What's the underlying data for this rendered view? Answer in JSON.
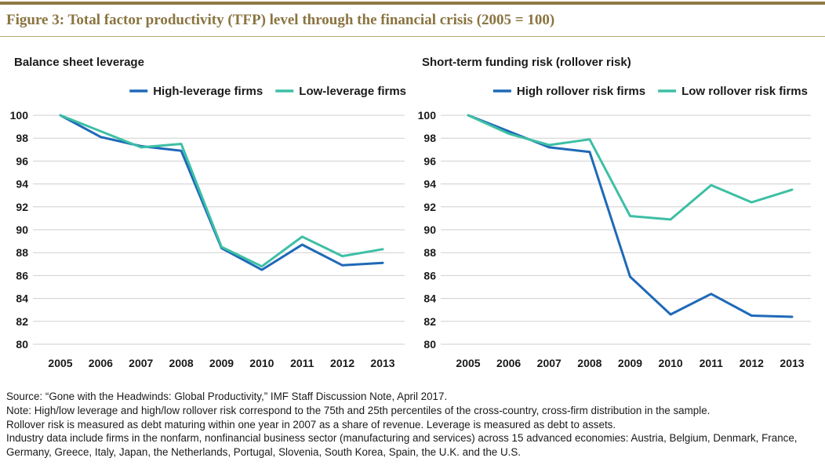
{
  "figure_title": "Figure 3: Total factor productivity (TFP) level through the financial crisis (2005 = 100)",
  "colors": {
    "series_dark": "#1f69b8",
    "series_light": "#3dbfa5",
    "grid": "#cfcfcf",
    "accent": "#8f7a45"
  },
  "chart_data": [
    {
      "type": "line",
      "title": "Balance sheet leverage",
      "xlabel": "",
      "ylabel": "",
      "categories": [
        "2005",
        "2006",
        "2007",
        "2008",
        "2009",
        "2010",
        "2011",
        "2012",
        "2013"
      ],
      "ylim": [
        80,
        100
      ],
      "yticks": [
        "100",
        "98",
        "96",
        "94",
        "92",
        "90",
        "88",
        "86",
        "84",
        "82",
        "80"
      ],
      "grid": true,
      "legend_position": "top-right",
      "series": [
        {
          "name": "High-leverage firms",
          "color": "#1f69b8",
          "values": [
            100,
            98.1,
            97.3,
            96.9,
            88.4,
            86.5,
            88.7,
            86.9,
            87.1
          ]
        },
        {
          "name": "Low-leverage firms",
          "color": "#3dbfa5",
          "values": [
            100,
            98.6,
            97.2,
            97.5,
            88.5,
            86.8,
            89.4,
            87.7,
            88.3
          ]
        }
      ]
    },
    {
      "type": "line",
      "title": "Short-term funding risk (rollover risk)",
      "xlabel": "",
      "ylabel": "",
      "categories": [
        "2005",
        "2006",
        "2007",
        "2008",
        "2009",
        "2010",
        "2011",
        "2012",
        "2013"
      ],
      "ylim": [
        80,
        100
      ],
      "yticks": [
        "100",
        "98",
        "96",
        "94",
        "92",
        "90",
        "88",
        "86",
        "84",
        "82",
        "80"
      ],
      "grid": true,
      "legend_position": "top-right",
      "series": [
        {
          "name": "High rollover risk firms",
          "color": "#1f69b8",
          "values": [
            100,
            98.6,
            97.2,
            96.8,
            85.9,
            82.6,
            84.4,
            82.5,
            82.4
          ]
        },
        {
          "name": "Low rollover risk firms",
          "color": "#3dbfa5",
          "values": [
            100,
            98.4,
            97.4,
            97.9,
            91.2,
            90.9,
            93.9,
            92.4,
            93.5
          ]
        }
      ]
    }
  ],
  "notes": {
    "source": "Source: “Gone with the Headwinds: Global Productivity,” IMF Staff Discussion Note, April 2017.",
    "note": "Note: High/low leverage and high/low rollover risk correspond to the 75th and 25th percentiles of the cross-country, cross-firm distribution in the sample.",
    "rollover": "Rollover risk is measured as debt maturing within one year in 2007 as a share of revenue. Leverage is measured as debt to assets.",
    "industry": "Industry data include firms in the nonfarm, nonfinancial business sector (manufacturing and services) across 15 advanced economies: Austria, Belgium, Denmark, France, Germany, Greece, Italy, Japan, the Netherlands, Portugal, Slovenia, South Korea, Spain, the U.K. and the U.S."
  }
}
